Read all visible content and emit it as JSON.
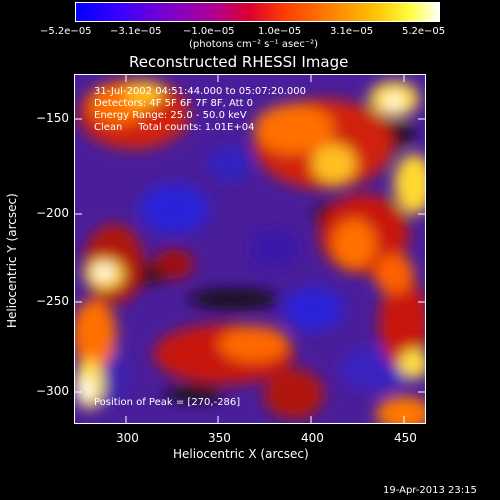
{
  "colorbar": {
    "tick_labels": [
      "−5.2e−05",
      "−3.1e−05",
      "−1.0e−05",
      "1.0e−05",
      "3.1e−05",
      "5.2e−05"
    ],
    "unit_label": "(photons cm⁻² s⁻¹ asec⁻²)",
    "colors": [
      "#0000ff",
      "#3a00ff",
      "#7a00d0",
      "#b00090",
      "#e00030",
      "#ff4000",
      "#ff8000",
      "#ffc000",
      "#ffff40",
      "#ffffff"
    ]
  },
  "plot": {
    "title": "Reconstructed RHESSI Image",
    "info_lines": [
      "31-Jul-2002 04:51:44.000 to 05:07:20.000",
      "Detectors: 4F 5F 6F 7F 8F, Att 0",
      "Energy Range: 25.0 - 50.0 keV",
      "Clean     Total counts: 1.01E+04"
    ],
    "peak_label": "Position of Peak = [270,-286]",
    "xlabel": "Heliocentric X (arcsec)",
    "ylabel": "Heliocentric Y (arcsec)",
    "x_ticks": [
      "300",
      "350",
      "400",
      "450"
    ],
    "y_ticks": [
      "−150",
      "−200",
      "−250",
      "−300"
    ]
  },
  "footer": {
    "timestamp": "19-Apr-2013 23:15"
  }
}
